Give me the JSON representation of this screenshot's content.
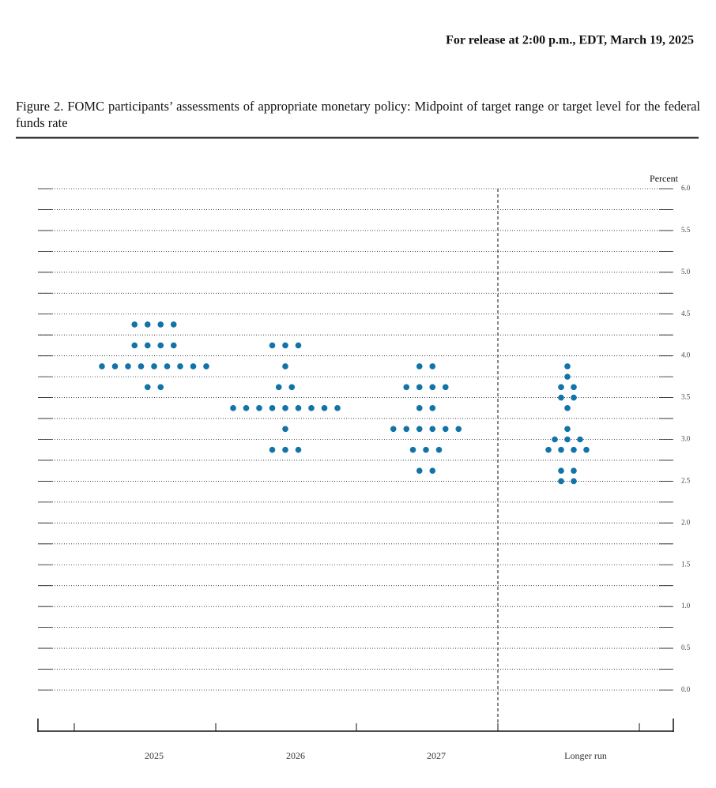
{
  "header": "For release at 2:00 p.m., EDT, March 19, 2025",
  "chart_data": {
    "type": "dot",
    "title": "Figure 2.  FOMC participants’ assessments of appropriate monetary policy: Midpoint of target range or target level for the federal funds rate",
    "ylabel": "Percent",
    "color": "#1273a8",
    "categories": [
      "2025",
      "2026",
      "2027",
      "Longer run"
    ],
    "values": [
      [
        4.375,
        4.125,
        3.875,
        3.625
      ],
      [
        4.125,
        3.875,
        3.625,
        3.375,
        3.125,
        2.875
      ],
      [
        3.875,
        3.625,
        3.375,
        3.125,
        2.875,
        2.625
      ],
      [
        3.875,
        3.75,
        3.625,
        3.5,
        3.375,
        3.125,
        3.0,
        2.875,
        2.625,
        2.5
      ]
    ],
    "counts": [
      [
        4,
        4,
        9,
        2
      ],
      [
        3,
        1,
        2,
        9,
        1,
        3
      ],
      [
        2,
        4,
        2,
        6,
        3,
        2
      ],
      [
        1,
        1,
        2,
        2,
        1,
        1,
        3,
        4,
        2,
        2
      ]
    ],
    "ylim": [
      0,
      6
    ],
    "yticks": [
      {
        "value": 0,
        "label": "0.0"
      },
      {
        "value": 0.5,
        "label": "0.5"
      },
      {
        "value": 1,
        "label": "1.0"
      },
      {
        "value": 1.5,
        "label": "1.5"
      },
      {
        "value": 2,
        "label": "2.0"
      },
      {
        "value": 2.5,
        "label": "2.5"
      },
      {
        "value": 3,
        "label": "3.0"
      },
      {
        "value": 3.5,
        "label": "3.5"
      },
      {
        "value": 4,
        "label": "4.0"
      },
      {
        "value": 4.5,
        "label": "4.5"
      },
      {
        "value": 5,
        "label": "5.0"
      },
      {
        "value": 5.5,
        "label": "5.5"
      },
      {
        "value": 6,
        "label": "6.0"
      }
    ],
    "yminor": [
      0.25,
      0.75,
      1.25,
      1.75,
      2.25,
      2.75,
      3.25,
      3.75,
      4.25,
      4.75,
      5.25,
      5.75
    ],
    "grid": true
  }
}
